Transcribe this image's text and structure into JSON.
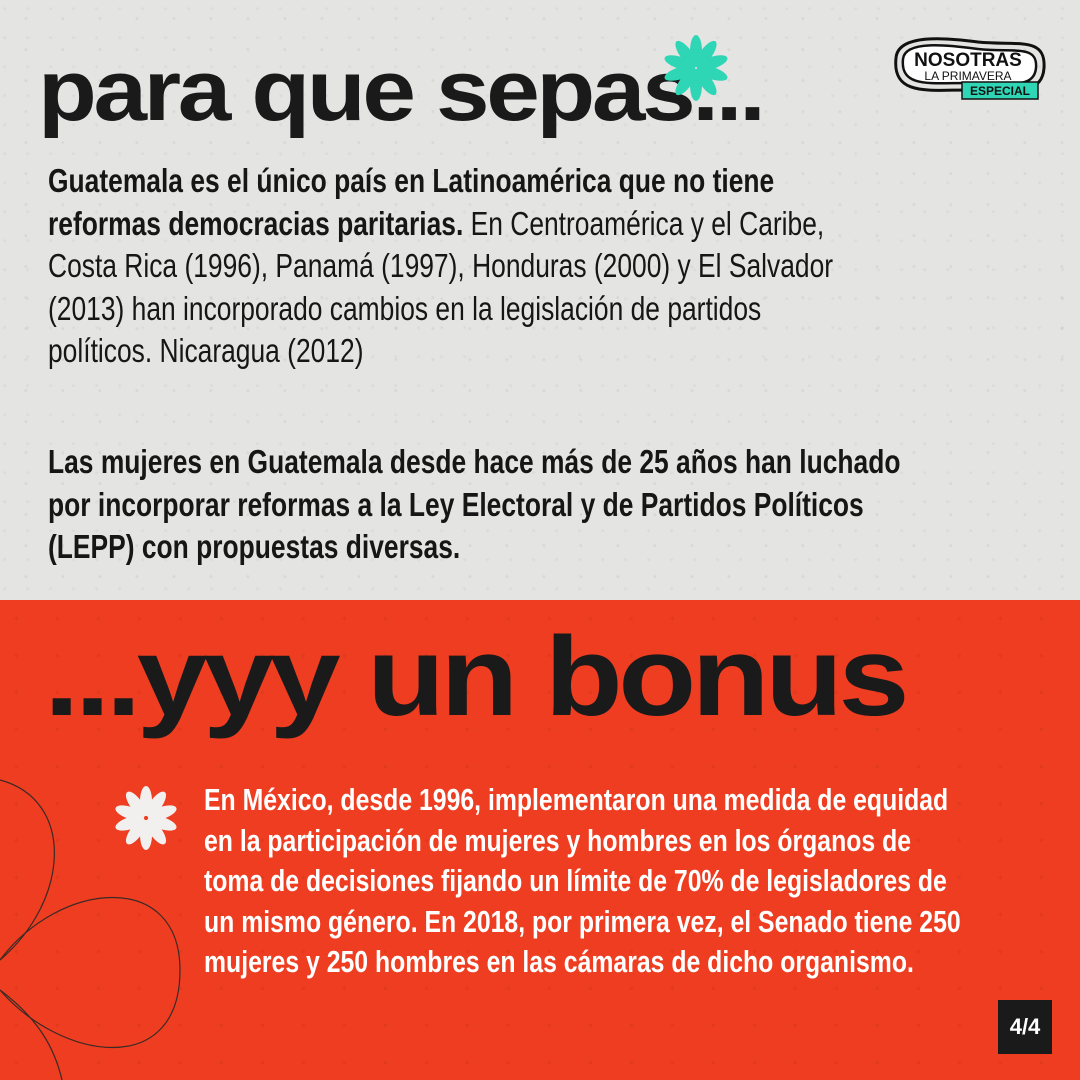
{
  "logo": {
    "line1": "NOSOTRAS",
    "line2": "LA PRIMAVERA",
    "tag": "ESPECIAL",
    "tag_color": "#2fd6b5"
  },
  "section1": {
    "title": "para que sepas...",
    "paragraph1": [
      {
        "bold": "Guatemala es el único país en Latinoamérica que no tiene",
        "normal": ""
      },
      {
        "bold": "reformas democracias paritarias.",
        "normal": " En Centroamérica y el Caribe,"
      },
      {
        "bold": "",
        "normal": "Costa Rica (1996), Panamá (1997), Honduras (2000) y El Salvador"
      },
      {
        "bold": "",
        "normal": "(2013) han incorporado cambios en la legislación de partidos"
      },
      {
        "bold": "",
        "normal": "políticos. Nicaragua (2012)"
      }
    ],
    "paragraph2": [
      "Las mujeres en Guatemala desde hace más de 25 años han luchado",
      "por incorporar reformas a la Ley Electoral y de Partidos Políticos",
      "(LEPP) con propuestas diversas."
    ]
  },
  "section2": {
    "title": "...yyy un bonus",
    "paragraph": [
      "En México, desde 1996, implementaron una medida de equidad",
      "en la participación de mujeres y hombres en los órganos de",
      "toma de decisiones fijando un límite de 70% de legisladores de",
      "un mismo género. En 2018, por primera vez, el Senado tiene 250",
      "mujeres y 250 hombres en las cámaras de dicho organismo."
    ]
  },
  "page_indicator": "4/4",
  "colors": {
    "background_top": "#e4e4e2",
    "background_bottom": "#ee3d20",
    "accent": "#2fd6b5",
    "text": "#161616"
  }
}
